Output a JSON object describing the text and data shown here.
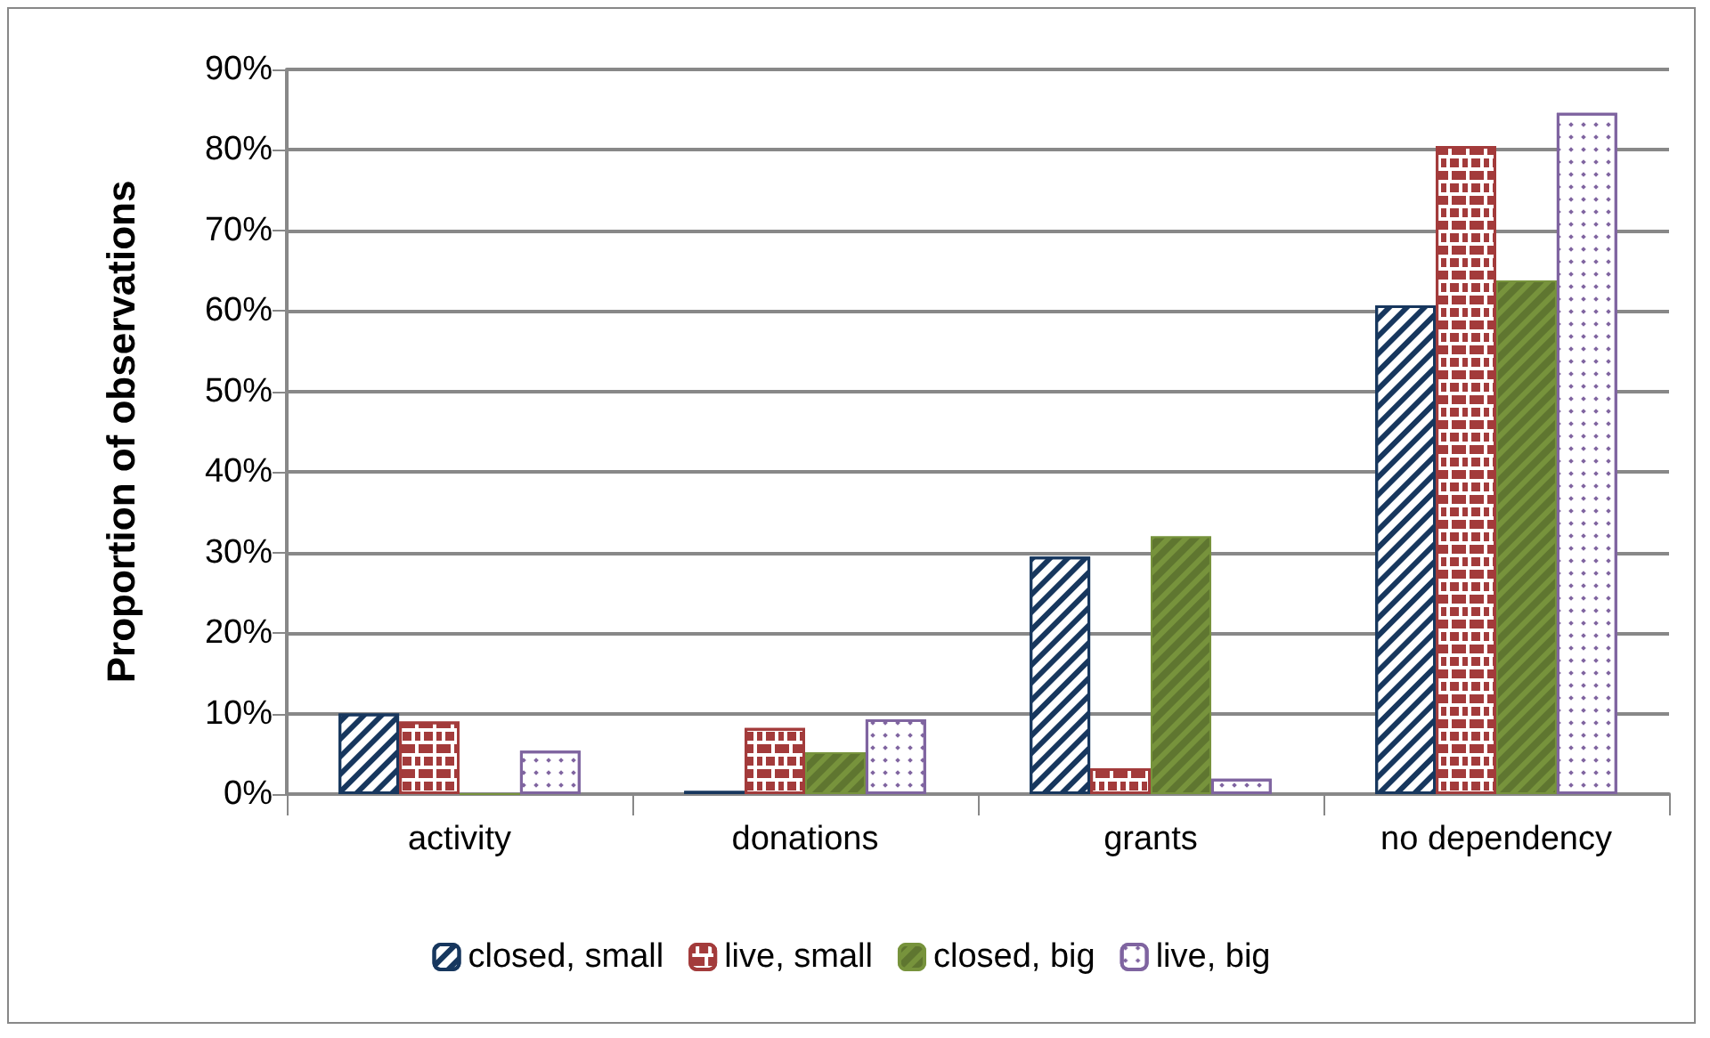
{
  "chart_data": {
    "type": "bar",
    "ylabel": "Proportion of observations",
    "categories": [
      "activity",
      "donations",
      "grants",
      "no dependency"
    ],
    "series": [
      {
        "name": "closed, small",
        "color": "#17375e",
        "values": [
          10,
          0.4,
          29.5,
          60.7
        ]
      },
      {
        "name": "live, small",
        "color": "#a33b3b",
        "values": [
          9,
          8.2,
          3.2,
          80.5
        ]
      },
      {
        "name": "closed, big",
        "color": "#77933c",
        "values": [
          0,
          5.2,
          32,
          63.8
        ]
      },
      {
        "name": "live, big",
        "color": "#7f64a0",
        "values": [
          5.4,
          9.3,
          1.9,
          84.6
        ]
      }
    ],
    "ylim": [
      0,
      90
    ],
    "yticks": [
      {
        "value": 0,
        "label": "0%"
      },
      {
        "value": 10,
        "label": "10%"
      },
      {
        "value": 20,
        "label": "20%"
      },
      {
        "value": 30,
        "label": "30%"
      },
      {
        "value": 40,
        "label": "40%"
      },
      {
        "value": 50,
        "label": "50%"
      },
      {
        "value": 60,
        "label": "60%"
      },
      {
        "value": 70,
        "label": "70%"
      },
      {
        "value": 80,
        "label": "80%"
      },
      {
        "value": 90,
        "label": "90%"
      }
    ],
    "grid": "y",
    "legend": "bottom"
  }
}
